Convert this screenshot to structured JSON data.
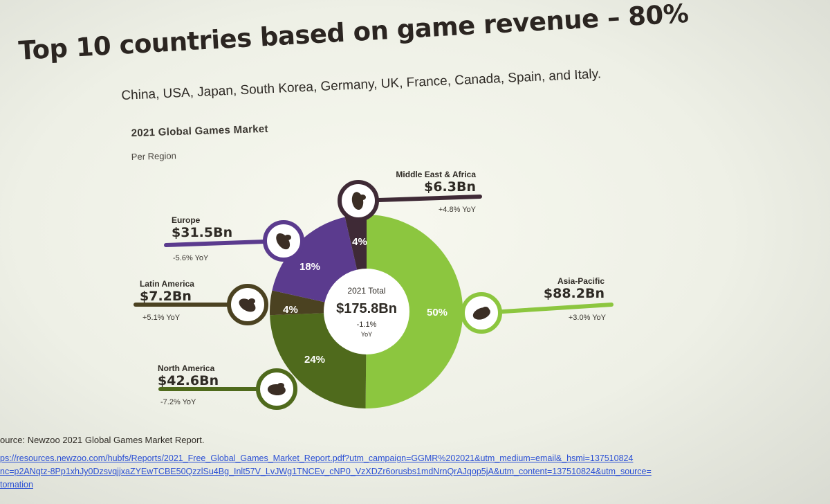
{
  "slide": {
    "title": "Top 10 countries based on game revenue – 80%",
    "subtitle": "China, USA, Japan, South Korea, Germany, UK, France, Canada, Spain, and Italy."
  },
  "chart_data": {
    "type": "pie",
    "title": "2021 Global Games Market",
    "subtitle": "Per Region",
    "center": {
      "label": "2021 Total",
      "value": "$175.8Bn",
      "change": "-1.1%",
      "change_label": "YoY"
    },
    "slices": [
      {
        "name": "Asia-Pacific",
        "value": 88.2,
        "percent": 50,
        "percent_label": "50%",
        "value_label": "$88.2Bn",
        "yoy_label": "+3.0% YoY",
        "color": "#8cc63f",
        "icon": "asia-pacific-map-icon"
      },
      {
        "name": "North America",
        "value": 42.6,
        "percent": 24,
        "percent_label": "24%",
        "value_label": "$42.6Bn",
        "yoy_label": "-7.2% YoY",
        "color": "#4f6a1c",
        "icon": "north-america-map-icon"
      },
      {
        "name": "Latin America",
        "value": 7.2,
        "percent": 4,
        "percent_label": "4%",
        "value_label": "$7.2Bn",
        "yoy_label": "+5.1% YoY",
        "color": "#4b4221",
        "icon": "latin-america-map-icon"
      },
      {
        "name": "Europe",
        "value": 31.5,
        "percent": 18,
        "percent_label": "18%",
        "value_label": "$31.5Bn",
        "yoy_label": "-5.6% YoY",
        "color": "#5b3b8e",
        "icon": "europe-map-icon"
      },
      {
        "name": "Middle East & Africa",
        "value": 6.3,
        "percent": 4,
        "percent_label": "4%",
        "value_label": "$6.3Bn",
        "yoy_label": "+4.8% YoY",
        "color": "#3f2a36",
        "icon": "middle-east-africa-map-icon"
      }
    ]
  },
  "source": {
    "text": "ource: Newzoo 2021 Global Games Market Report.",
    "link_lines": [
      "ps://resources.newzoo.com/hubfs/Reports/2021_Free_Global_Games_Market_Report.pdf?utm_campaign=GGMR%202021&utm_medium=email&_hsmi=137510824",
      "nc=p2ANqtz-8Pp1xhJy0DzsvqjjxaZYEwTCBE50QzzlSu4Bg_Inlt57V_LvJWg1TNCEv_cNP0_VzXDZr6orusbs1mdNrnQrAJqop5jA&utm_content=137510824&utm_source=",
      "tomation"
    ]
  }
}
